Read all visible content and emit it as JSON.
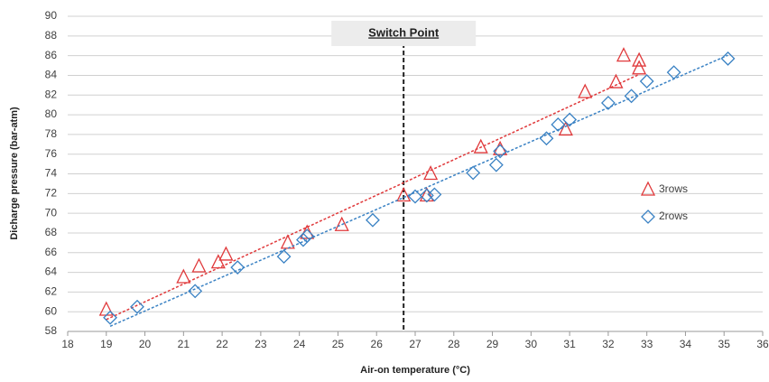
{
  "chart_data": {
    "type": "scatter",
    "x_label": "Air-on temperature (°C)",
    "y_label": "Dicharge pressure (bar-atm)",
    "xlim": [
      18,
      36
    ],
    "xticks": [
      18,
      19,
      20,
      21,
      22,
      23,
      24,
      25,
      26,
      27,
      28,
      29,
      30,
      31,
      32,
      33,
      34,
      35,
      36
    ],
    "ylim": [
      58,
      90
    ],
    "yticks": [
      58,
      60,
      62,
      64,
      66,
      68,
      70,
      72,
      74,
      76,
      78,
      80,
      82,
      84,
      86,
      88,
      90
    ],
    "grid": true,
    "trendline": true,
    "legend_position": "right",
    "annotation": {
      "text": "Switch Point",
      "x": 26.7
    },
    "series": [
      {
        "name": "3rows",
        "color": "#e0393b",
        "marker": "triangle",
        "x": [
          19.0,
          21.0,
          21.4,
          21.9,
          22.1,
          23.7,
          24.2,
          25.1,
          26.7,
          27.3,
          27.4,
          28.7,
          29.2,
          30.9,
          31.4,
          32.2,
          32.4,
          32.8,
          32.8
        ],
        "values": [
          60.2,
          63.5,
          64.6,
          65.0,
          65.8,
          67.0,
          68.0,
          68.8,
          71.8,
          71.8,
          74.0,
          76.7,
          76.5,
          78.5,
          82.3,
          83.3,
          86.0,
          85.5,
          84.7
        ]
      },
      {
        "name": "2rows",
        "color": "#3a82c4",
        "marker": "diamond",
        "x": [
          19.1,
          19.8,
          21.3,
          22.4,
          23.6,
          24.1,
          24.2,
          25.9,
          27.0,
          27.3,
          27.5,
          28.5,
          29.1,
          29.2,
          30.4,
          30.7,
          31.0,
          32.0,
          32.6,
          33.0,
          33.7,
          35.1
        ],
        "values": [
          59.4,
          60.5,
          62.1,
          64.5,
          65.6,
          67.3,
          67.7,
          69.3,
          71.7,
          71.8,
          71.9,
          74.1,
          74.9,
          76.3,
          77.6,
          79.0,
          79.5,
          81.2,
          81.9,
          83.4,
          84.3,
          85.7
        ]
      }
    ]
  }
}
